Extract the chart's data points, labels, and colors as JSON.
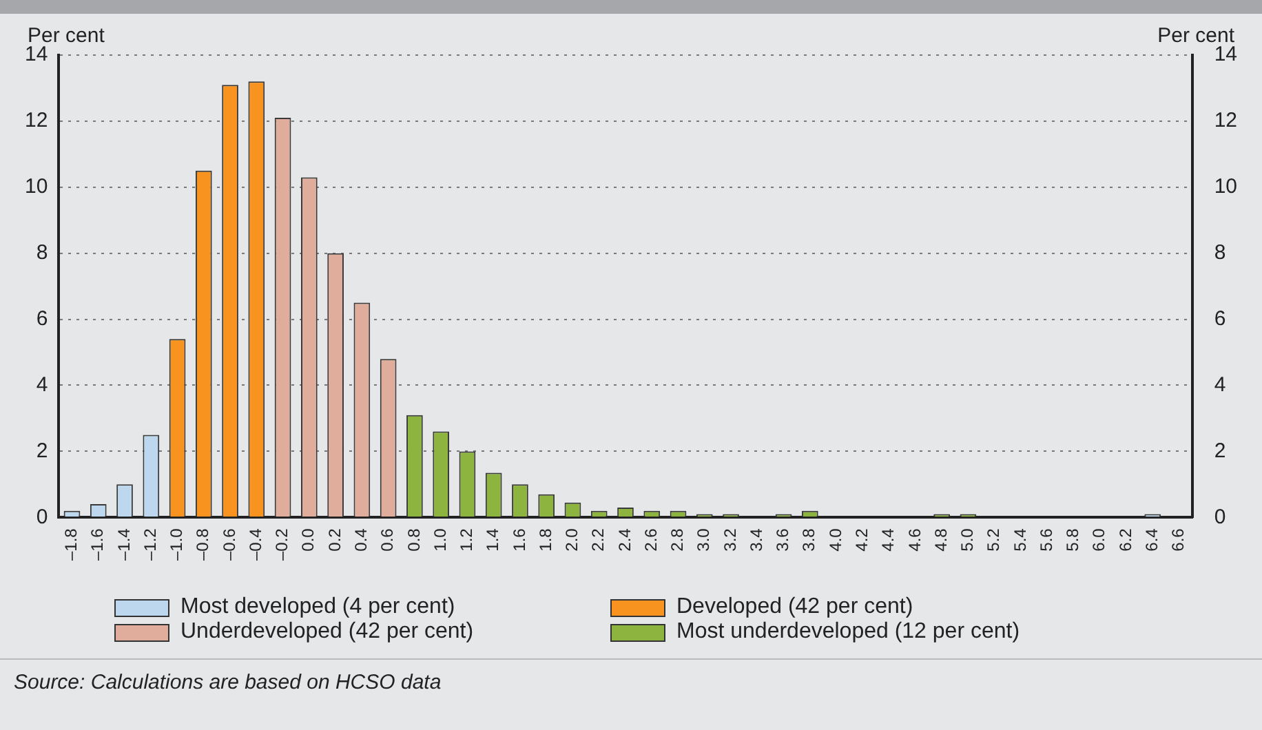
{
  "chart_data": {
    "type": "bar",
    "categories": [
      "–1.8",
      "–1.6",
      "–1.4",
      "–1.2",
      "–1.0",
      "–0.8",
      "–0.6",
      "–0.4",
      "–0.2",
      "0.0",
      "0.2",
      "0.4",
      "0.6",
      "0.8",
      "1.0",
      "1.2",
      "1.4",
      "1.6",
      "1.8",
      "2.0",
      "2.2",
      "2.4",
      "2.6",
      "2.8",
      "3.0",
      "3.2",
      "3.4",
      "3.6",
      "3.8",
      "4.0",
      "4.2",
      "4.4",
      "4.6",
      "4.8",
      "5.0",
      "5.2",
      "5.4",
      "5.6",
      "5.8",
      "6.0",
      "6.2",
      "6.4",
      "6.6"
    ],
    "series": [
      {
        "name": "Most developed (4 per cent)",
        "color": "#bdd7ee",
        "values": [
          0.2,
          0.4,
          1.0,
          2.5,
          null,
          null,
          null,
          null,
          null,
          null,
          null,
          null,
          null,
          null,
          null,
          null,
          null,
          null,
          null,
          null,
          null,
          null,
          null,
          null,
          null,
          null,
          null,
          null,
          null,
          null,
          null,
          null,
          null,
          null,
          null,
          null,
          null,
          null,
          null,
          null,
          null,
          0.1,
          0
        ]
      },
      {
        "name": "Developed (42 per cent)",
        "color": "#f7931e",
        "values": [
          null,
          null,
          null,
          null,
          5.4,
          10.5,
          13.1,
          13.2,
          null,
          null,
          null,
          null,
          null,
          null,
          null,
          null,
          null,
          null,
          null,
          null,
          null,
          null,
          null,
          null,
          null,
          null,
          null,
          null,
          null,
          null,
          null,
          null,
          null,
          null,
          null,
          null,
          null,
          null,
          null,
          null,
          null,
          null,
          null
        ]
      },
      {
        "name": "Underdeveloped (42 per cent)",
        "color": "#e0ad9c",
        "values": [
          null,
          null,
          null,
          null,
          null,
          null,
          null,
          null,
          12.1,
          10.3,
          8.0,
          6.5,
          4.8,
          null,
          null,
          null,
          null,
          null,
          null,
          null,
          null,
          null,
          null,
          null,
          null,
          null,
          null,
          null,
          null,
          null,
          null,
          null,
          null,
          null,
          null,
          null,
          null,
          null,
          null,
          null,
          null,
          null,
          null
        ]
      },
      {
        "name": "Most underdeveloped (12 per cent)",
        "color": "#8db43e",
        "values": [
          null,
          null,
          null,
          null,
          null,
          null,
          null,
          null,
          null,
          null,
          null,
          null,
          null,
          3.1,
          2.6,
          2.0,
          1.35,
          1.0,
          0.7,
          0.45,
          0.2,
          0.3,
          0.2,
          0.2,
          0.1,
          0.1,
          0,
          0.1,
          0.2,
          0,
          0,
          0,
          0,
          0.1,
          0.1,
          0,
          0,
          0,
          0,
          0,
          0,
          null,
          null
        ]
      }
    ],
    "ylabel": "Per cent",
    "y2label": "Per cent",
    "ylim": [
      0,
      14
    ],
    "yticks": [
      0,
      2,
      4,
      6,
      8,
      10,
      12,
      14
    ],
    "y2lim": [
      0,
      14
    ],
    "y2ticks": [
      0,
      2,
      4,
      6,
      8,
      10,
      12,
      14
    ],
    "grid": "y",
    "legend": "bottom",
    "annotations": [
      "Source: Calculations are based on HCSO data"
    ]
  }
}
